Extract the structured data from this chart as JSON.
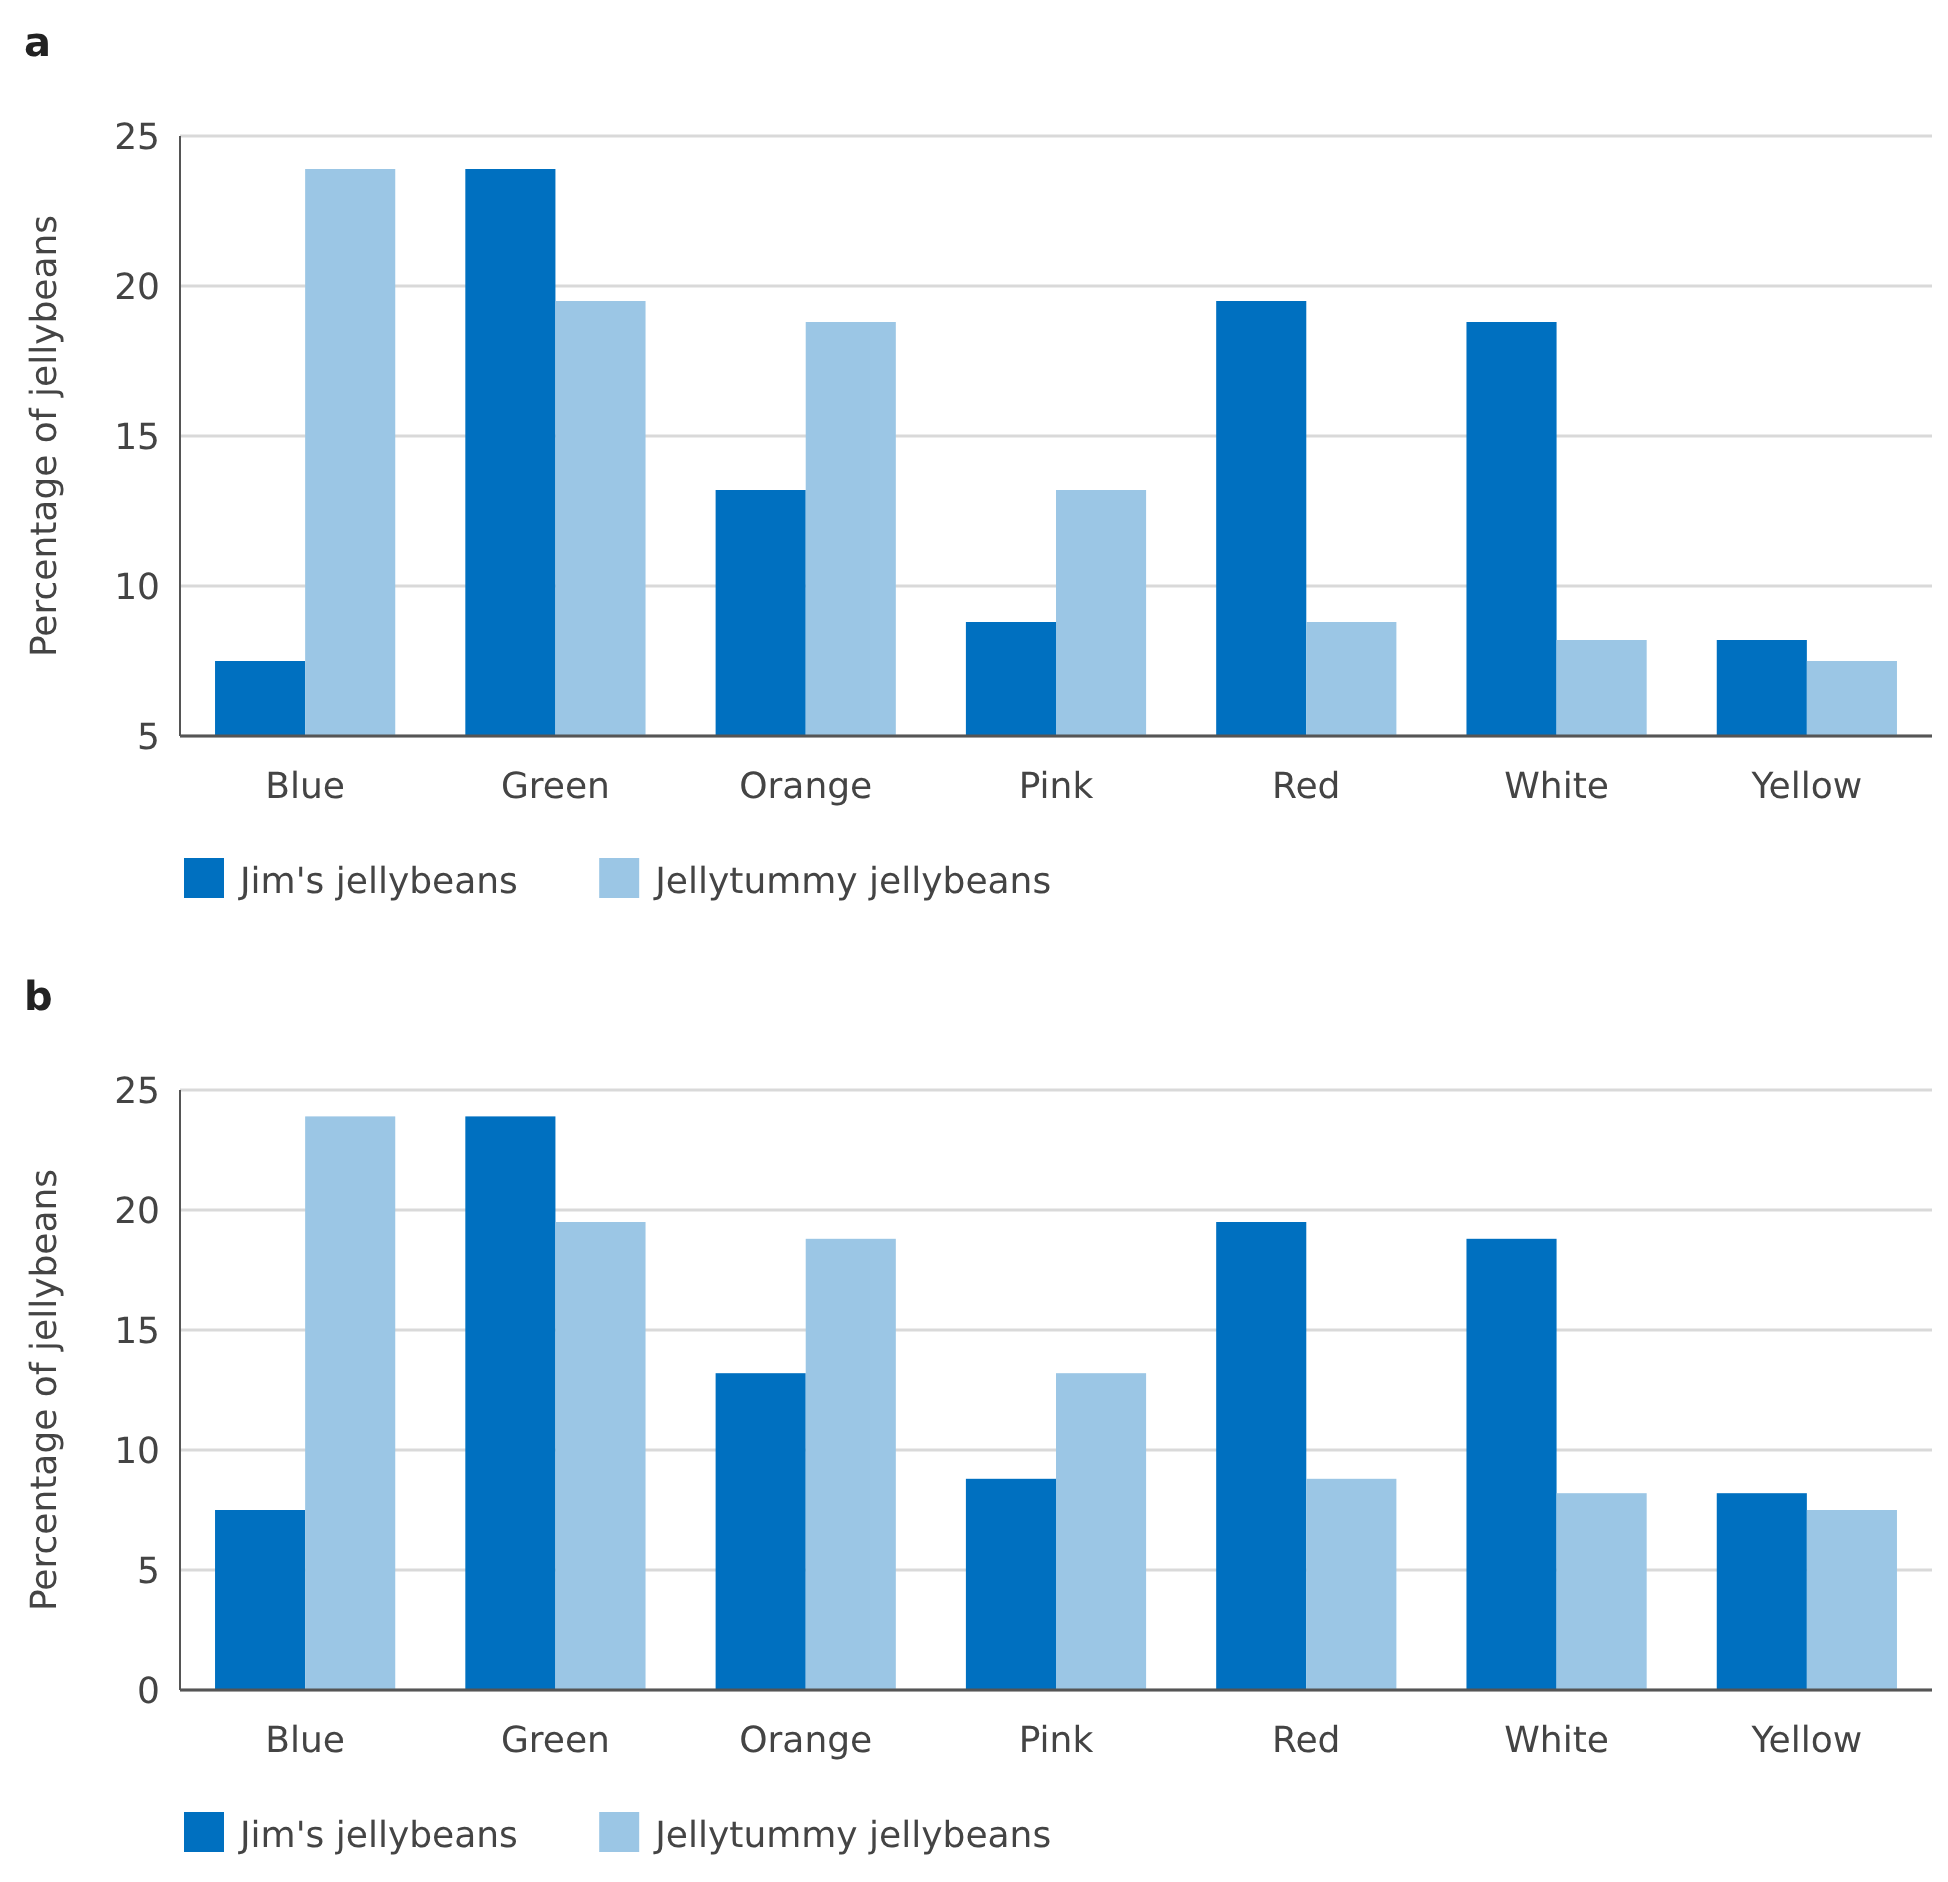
{
  "chart_data": [
    {
      "type": "bar",
      "title": "a",
      "ylabel": "Percentage of jellybeans",
      "categories": [
        "Blue",
        "Green",
        "Orange",
        "Pink",
        "Red",
        "White",
        "Yellow"
      ],
      "series": [
        {
          "name": "Jim's jellybeans",
          "color": "#0070c0",
          "values": [
            7.5,
            23.9,
            13.2,
            8.8,
            19.5,
            18.8,
            8.2
          ]
        },
        {
          "name": "Jellytummy jellybeans",
          "color": "#9bc6e5",
          "values": [
            23.9,
            19.5,
            18.8,
            13.2,
            8.8,
            8.2,
            7.5
          ]
        }
      ],
      "ylim": [
        5,
        25
      ],
      "yticks": [
        5,
        10,
        15,
        20,
        25
      ],
      "grid": "y",
      "legend": "bottom"
    },
    {
      "type": "bar",
      "title": "b",
      "ylabel": "Percentage of jellybeans",
      "categories": [
        "Blue",
        "Green",
        "Orange",
        "Pink",
        "Red",
        "White",
        "Yellow"
      ],
      "series": [
        {
          "name": "Jim's jellybeans",
          "color": "#0070c0",
          "values": [
            7.5,
            23.9,
            13.2,
            8.8,
            19.5,
            18.8,
            8.2
          ]
        },
        {
          "name": "Jellytummy jellybeans",
          "color": "#9bc6e5",
          "values": [
            23.9,
            19.5,
            18.8,
            13.2,
            8.8,
            8.2,
            7.5
          ]
        }
      ],
      "ylim": [
        0,
        25
      ],
      "yticks": [
        0,
        5,
        10,
        15,
        20,
        25
      ],
      "grid": "y",
      "legend": "bottom"
    }
  ]
}
